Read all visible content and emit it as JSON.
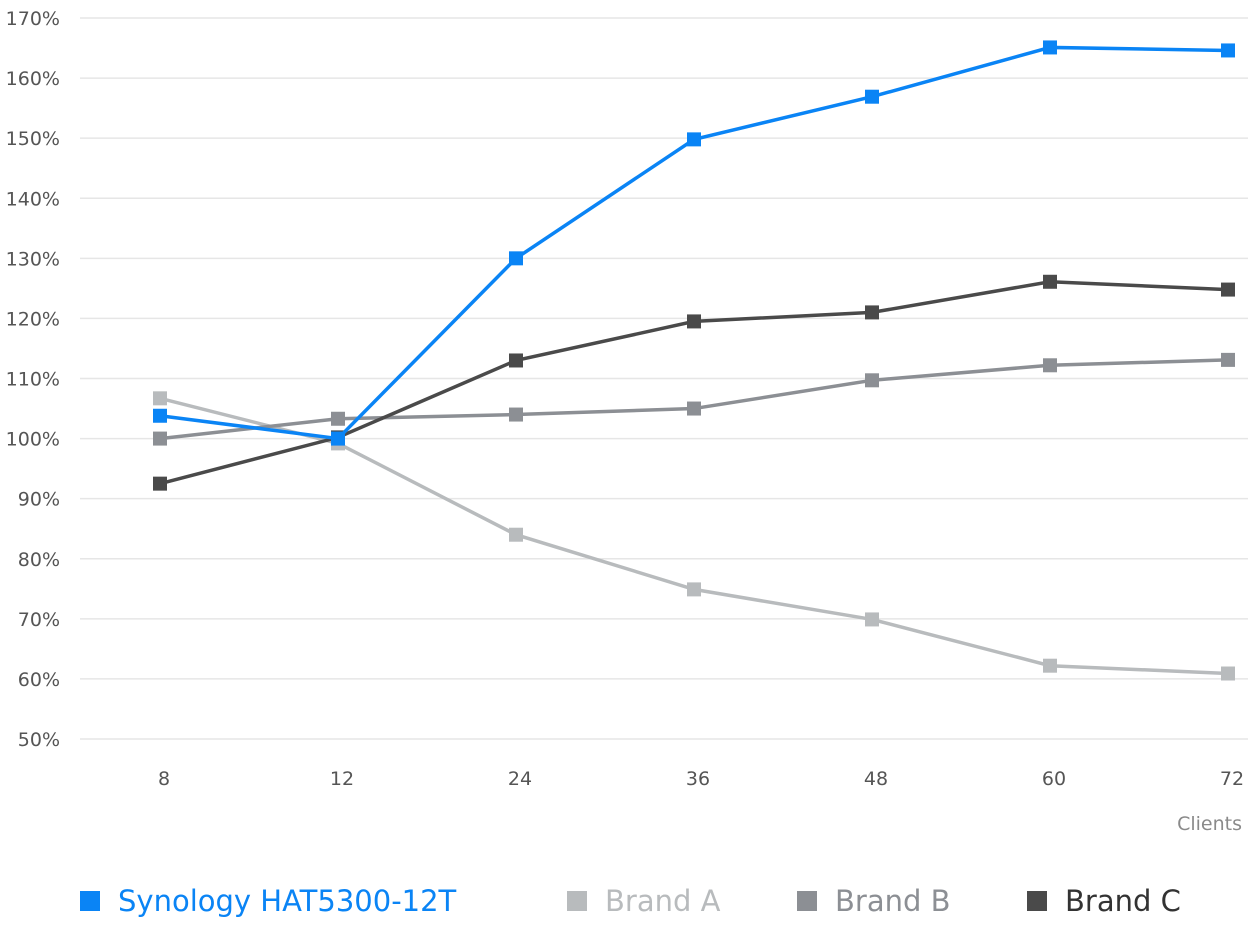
{
  "chart_data": {
    "type": "line",
    "xlabel": "Clients",
    "ylabel": "",
    "categories": [
      "8",
      "12",
      "24",
      "36",
      "48",
      "60",
      "72"
    ],
    "ylim": [
      50,
      170
    ],
    "yticks": [
      "50%",
      "60%",
      "70%",
      "80%",
      "90%",
      "100%",
      "110%",
      "120%",
      "130%",
      "140%",
      "150%",
      "160%",
      "170%"
    ],
    "grid": true,
    "legend_position": "bottom",
    "series": [
      {
        "name": "Synology HAT5300-12T",
        "color": "#0a84f5",
        "values": [
          103.8,
          100,
          130,
          149.8,
          156.9,
          165.1,
          164.6
        ]
      },
      {
        "name": "Brand A",
        "color": "#b8bbbd",
        "values": [
          106.7,
          99.2,
          84,
          74.9,
          69.9,
          62.2,
          60.9
        ]
      },
      {
        "name": "Brand B",
        "color": "#8c8f94",
        "values": [
          100,
          103.3,
          104,
          105,
          109.7,
          112.2,
          113.1
        ]
      },
      {
        "name": "Brand C",
        "color": "#4a4a4a",
        "values": [
          92.5,
          100.2,
          113,
          119.5,
          121,
          126.1,
          124.8
        ]
      }
    ]
  }
}
